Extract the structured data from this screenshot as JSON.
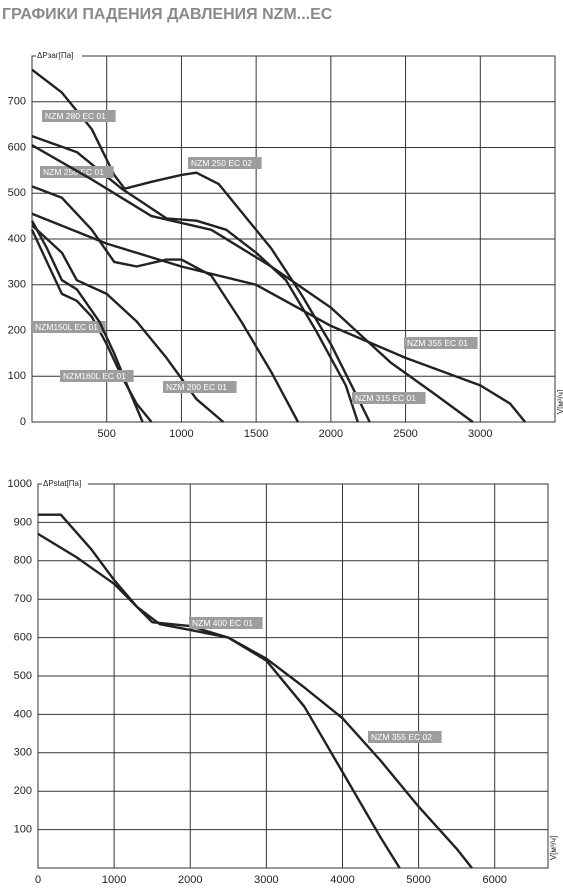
{
  "title": "ГРАФИКИ ПАДЕНИЯ ДАВЛЕНИЯ NZM...EC",
  "chart_data": [
    {
      "type": "line",
      "y_label": "ΔPзаг[Па]",
      "x_label": "V[м³/ч]",
      "xlim": [
        0,
        3500
      ],
      "ylim": [
        0,
        800
      ],
      "xticks": [
        500,
        1000,
        1500,
        2000,
        2500,
        3000
      ],
      "yticks": [
        0,
        100,
        200,
        300,
        400,
        500,
        600,
        700
      ],
      "grid": true,
      "series": [
        {
          "name": "NZM 250 EC 02",
          "color": "#222222",
          "x": [
            0,
            200,
            400,
            550,
            620,
            800,
            1000,
            1100,
            1250,
            1400,
            1600,
            1800,
            2000,
            2200,
            2260
          ],
          "values": [
            770,
            720,
            640,
            540,
            510,
            525,
            540,
            545,
            520,
            460,
            380,
            280,
            170,
            40,
            0
          ]
        },
        {
          "name": "NZM 280 EC 01",
          "color": "#222222",
          "x": [
            0,
            300,
            600,
            900,
            1100,
            1300,
            1500,
            1700,
            1900,
            2100,
            2180
          ],
          "values": [
            625,
            590,
            510,
            445,
            440,
            420,
            370,
            310,
            200,
            80,
            0
          ]
        },
        {
          "name": "NZM 250 EC 01",
          "color": "#222222",
          "x": [
            0,
            200,
            400,
            550,
            700,
            900,
            1000,
            1200,
            1400,
            1600,
            1780
          ],
          "values": [
            515,
            490,
            420,
            350,
            340,
            355,
            355,
            320,
            220,
            110,
            0
          ]
        },
        {
          "name": "NZM 315 EC 01",
          "color": "#222222",
          "x": [
            0,
            400,
            800,
            1200,
            1600,
            2000,
            2400,
            2700,
            2950
          ],
          "values": [
            605,
            530,
            450,
            420,
            340,
            250,
            130,
            60,
            0
          ]
        },
        {
          "name": "NZM 355 EC 01",
          "color": "#222222",
          "x": [
            0,
            500,
            1000,
            1500,
            2000,
            2500,
            3000,
            3200,
            3300
          ],
          "values": [
            455,
            390,
            340,
            300,
            210,
            140,
            80,
            40,
            0
          ]
        },
        {
          "name": "NZM 200 EC 01",
          "color": "#222222",
          "x": [
            0,
            200,
            300,
            500,
            700,
            900,
            1100,
            1280
          ],
          "values": [
            430,
            370,
            310,
            280,
            220,
            140,
            50,
            0
          ]
        },
        {
          "name": "NZM150L EC 01",
          "color": "#222222",
          "x": [
            0,
            100,
            200,
            300,
            400,
            500,
            600,
            700,
            800
          ],
          "values": [
            420,
            350,
            280,
            265,
            230,
            170,
            100,
            40,
            0
          ]
        },
        {
          "name": "NZM160L EC 01",
          "color": "#222222",
          "x": [
            0,
            100,
            200,
            300,
            450,
            550,
            650,
            740
          ],
          "values": [
            440,
            380,
            310,
            290,
            220,
            150,
            70,
            0
          ]
        }
      ]
    },
    {
      "type": "line",
      "y_label": "ΔPstat[Па]",
      "x_label": "V[м³/ч]",
      "xlim": [
        0,
        6700
      ],
      "ylim": [
        0,
        1000
      ],
      "xticks": [
        0,
        1000,
        2000,
        3000,
        4000,
        5000,
        6000
      ],
      "yticks": [
        100,
        200,
        300,
        400,
        500,
        600,
        700,
        800,
        900,
        1000
      ],
      "grid": true,
      "series": [
        {
          "name": "NZM 400 EC 01",
          "color": "#222222",
          "x": [
            0,
            300,
            700,
            1000,
            1300,
            1500,
            2000,
            2500,
            3000,
            3500,
            4000,
            4500,
            4750
          ],
          "values": [
            920,
            920,
            830,
            750,
            680,
            640,
            630,
            600,
            540,
            420,
            250,
            80,
            0
          ]
        },
        {
          "name": "NZM 355 EC 02",
          "color": "#222222",
          "x": [
            0,
            500,
            1000,
            1300,
            1600,
            2000,
            2500,
            3000,
            3500,
            4000,
            4500,
            5000,
            5500,
            5700
          ],
          "values": [
            870,
            810,
            740,
            680,
            635,
            620,
            600,
            545,
            470,
            390,
            280,
            160,
            50,
            0
          ]
        }
      ]
    }
  ]
}
